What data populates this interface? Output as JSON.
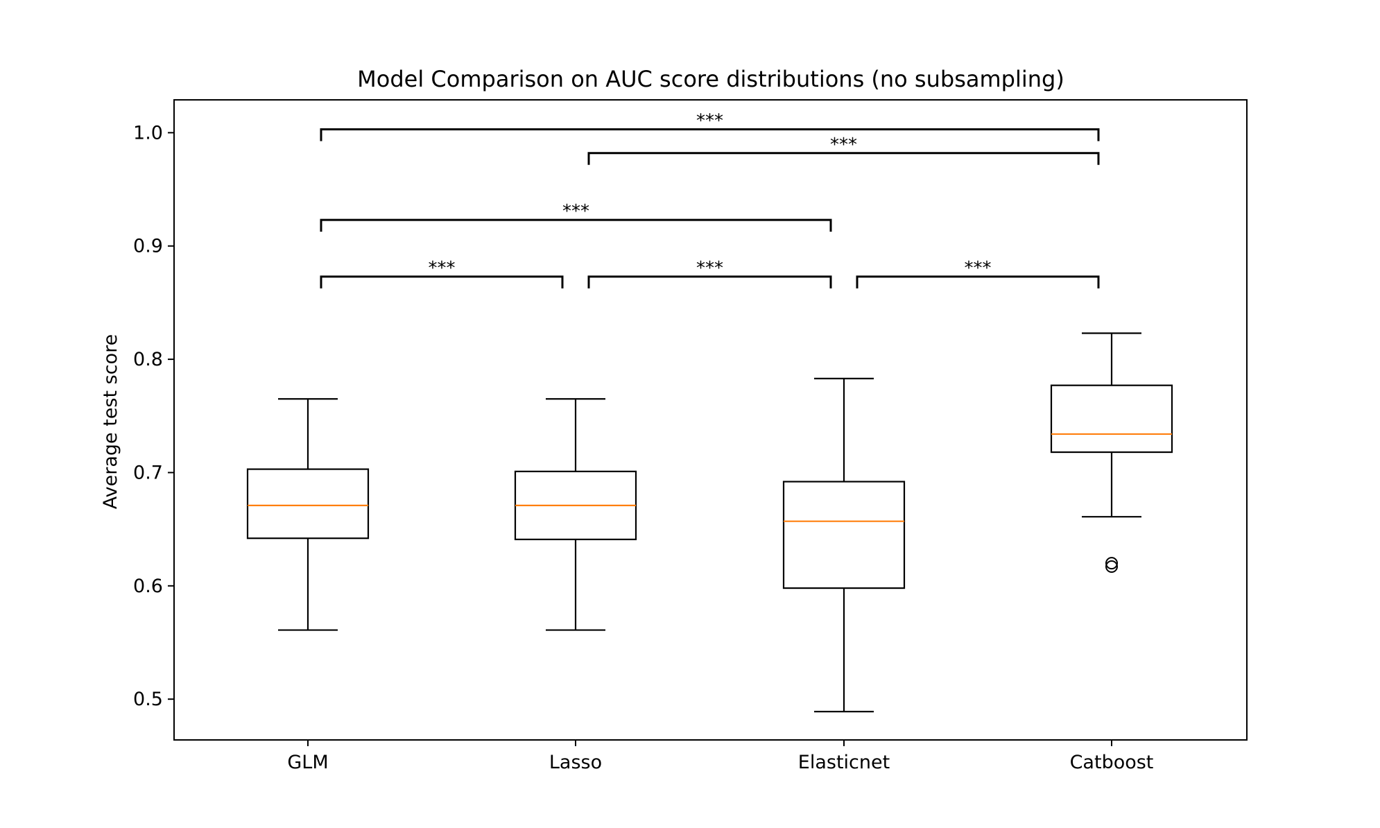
{
  "chart_data": {
    "type": "box",
    "title": "Model Comparison on AUC score distributions (no subsampling)",
    "xlabel": "",
    "ylabel": "Average test score",
    "categories": [
      "GLM",
      "Lasso",
      "Elasticnet",
      "Catboost"
    ],
    "ylim": [
      0.464,
      1.029
    ],
    "yticks": [
      0.5,
      0.6,
      0.7,
      0.8,
      0.9,
      1.0
    ],
    "ytick_labels": [
      "0.5",
      "0.6",
      "0.7",
      "0.8",
      "0.9",
      "1.0"
    ],
    "grid": false,
    "boxes": [
      {
        "category": "GLM",
        "whisker_low": 0.561,
        "q1": 0.642,
        "median": 0.671,
        "q3": 0.703,
        "whisker_high": 0.765,
        "outliers": []
      },
      {
        "category": "Lasso",
        "whisker_low": 0.561,
        "q1": 0.641,
        "median": 0.671,
        "q3": 0.701,
        "whisker_high": 0.765,
        "outliers": []
      },
      {
        "category": "Elasticnet",
        "whisker_low": 0.489,
        "q1": 0.598,
        "median": 0.657,
        "q3": 0.692,
        "whisker_high": 0.783,
        "outliers": []
      },
      {
        "category": "Catboost",
        "whisker_low": 0.661,
        "q1": 0.718,
        "median": 0.734,
        "q3": 0.777,
        "whisker_high": 0.823,
        "outliers": [
          0.617,
          0.62
        ]
      }
    ],
    "significance": [
      {
        "from": "GLM",
        "to": "Lasso",
        "y": 0.873,
        "label": "***"
      },
      {
        "from": "Lasso",
        "to": "Elasticnet",
        "y": 0.873,
        "label": "***"
      },
      {
        "from": "Elasticnet",
        "to": "Catboost",
        "y": 0.873,
        "label": "***"
      },
      {
        "from": "GLM",
        "to": "Elasticnet",
        "y": 0.923,
        "label": "***"
      },
      {
        "from": "Lasso",
        "to": "Catboost",
        "y": 0.982,
        "label": "***"
      },
      {
        "from": "GLM",
        "to": "Catboost",
        "y": 1.003,
        "label": "***"
      }
    ],
    "colors": {
      "box": "#000000",
      "median": "#ff7f0e",
      "bracket": "#000000"
    }
  }
}
